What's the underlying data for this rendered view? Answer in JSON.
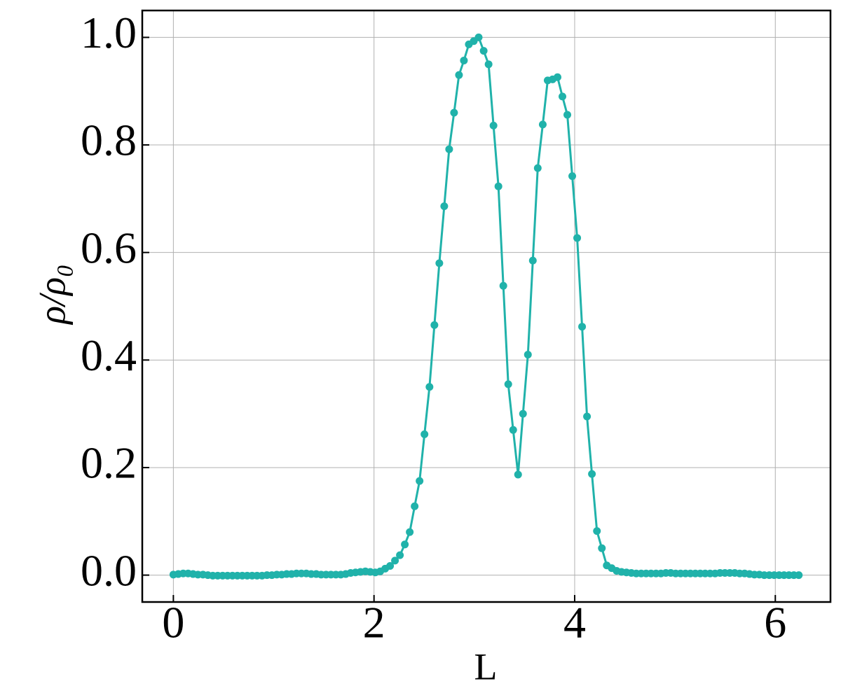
{
  "chart_data": {
    "type": "line",
    "x_label": "L",
    "y_label": "ρ/ρ₀",
    "x": [
      0,
      0.049,
      0.098,
      0.147,
      0.196,
      0.245,
      0.295,
      0.344,
      0.393,
      0.442,
      0.491,
      0.54,
      0.589,
      0.638,
      0.687,
      0.736,
      0.785,
      0.834,
      0.884,
      0.933,
      0.982,
      1.031,
      1.08,
      1.129,
      1.178,
      1.227,
      1.276,
      1.325,
      1.374,
      1.424,
      1.473,
      1.522,
      1.571,
      1.62,
      1.669,
      1.718,
      1.767,
      1.816,
      1.865,
      1.914,
      1.963,
      2.013,
      2.062,
      2.111,
      2.16,
      2.209,
      2.258,
      2.307,
      2.356,
      2.405,
      2.454,
      2.503,
      2.553,
      2.602,
      2.651,
      2.7,
      2.749,
      2.798,
      2.847,
      2.896,
      2.945,
      2.994,
      3.043,
      3.093,
      3.142,
      3.191,
      3.24,
      3.289,
      3.338,
      3.387,
      3.436,
      3.485,
      3.534,
      3.583,
      3.632,
      3.682,
      3.731,
      3.78,
      3.829,
      3.878,
      3.927,
      3.976,
      4.025,
      4.074,
      4.123,
      4.172,
      4.222,
      4.271,
      4.32,
      4.369,
      4.418,
      4.467,
      4.516,
      4.565,
      4.614,
      4.663,
      4.712,
      4.761,
      4.811,
      4.86,
      4.909,
      4.958,
      5.007,
      5.056,
      5.105,
      5.154,
      5.203,
      5.252,
      5.301,
      5.351,
      5.4,
      5.449,
      5.498,
      5.547,
      5.596,
      5.645,
      5.694,
      5.743,
      5.792,
      5.841,
      5.89,
      5.94,
      5.989,
      6.038,
      6.087,
      6.136,
      6.185,
      6.234
    ],
    "series": [
      {
        "color": "#20b2aa",
        "values": [
          0.001,
          0.002,
          0.003,
          0.003,
          0.002,
          0.001,
          0.001,
          0,
          -0.001,
          -0.001,
          -0.001,
          -0.001,
          -0.001,
          -0.001,
          -0.001,
          -0.001,
          -0.001,
          -0.001,
          -0.001,
          0,
          0,
          0.001,
          0.001,
          0.002,
          0.002,
          0.003,
          0.003,
          0.003,
          0.002,
          0.002,
          0.001,
          0.001,
          0.001,
          0.001,
          0.001,
          0.002,
          0.004,
          0.005,
          0.006,
          0.007,
          0.006,
          0.005,
          0.007,
          0.012,
          0.017,
          0.027,
          0.037,
          0.057,
          0.08,
          0.128,
          0.175,
          0.262,
          0.35,
          0.465,
          0.58,
          0.686,
          0.792,
          0.86,
          0.93,
          0.957,
          0.987,
          0.993,
          1.0,
          0.975,
          0.95,
          0.836,
          0.723,
          0.538,
          0.355,
          0.27,
          0.187,
          0.3,
          0.41,
          0.585,
          0.757,
          0.838,
          0.92,
          0.922,
          0.926,
          0.89,
          0.856,
          0.742,
          0.627,
          0.462,
          0.295,
          0.188,
          0.082,
          0.05,
          0.018,
          0.013,
          0.008,
          0.006,
          0.005,
          0.004,
          0.003,
          0.003,
          0.003,
          0.003,
          0.003,
          0.003,
          0.004,
          0.004,
          0.003,
          0.003,
          0.003,
          0.003,
          0.003,
          0.003,
          0.003,
          0.003,
          0.003,
          0.004,
          0.004,
          0.004,
          0.004,
          0.003,
          0.003,
          0.002,
          0.001,
          0.001,
          0,
          0,
          0,
          0,
          0,
          0,
          0,
          0
        ]
      }
    ],
    "xlim": [
      -0.31,
      6.55
    ],
    "ylim": [
      -0.05,
      1.05
    ],
    "xticks": [
      0,
      2,
      4,
      6
    ],
    "yticks": [
      {
        "value": 0,
        "label": "0.0"
      },
      0.2,
      0.4,
      0.6,
      0.8,
      {
        "value": 1,
        "label": "1.0"
      }
    ],
    "grid": true
  }
}
